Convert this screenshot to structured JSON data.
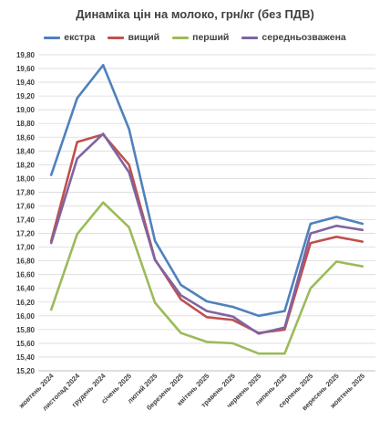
{
  "chart_data": {
    "type": "line",
    "title": "Динаміка цін на молоко, грн/кг (без ПДВ)",
    "xlabel": "",
    "ylabel": "",
    "ylim": [
      15.2,
      19.8
    ],
    "y_ticks": [
      "15,20",
      "15,40",
      "15,60",
      "15,80",
      "16,00",
      "16,20",
      "16,40",
      "16,60",
      "16,80",
      "17,00",
      "17,20",
      "17,40",
      "17,60",
      "17,80",
      "18,00",
      "18,20",
      "18,40",
      "18,60",
      "18,80",
      "19,00",
      "19,20",
      "19,40",
      "19,60",
      "19,80"
    ],
    "grid": true,
    "legend_position": "top",
    "categories": [
      "жовтень 2024",
      "листопад 2024",
      "грудень 2024",
      "січень 2025",
      "лютий 2025",
      "березень 2025",
      "квітень 2025",
      "травень 2025",
      "червень 2025",
      "липень 2025",
      "серпень 2025",
      "вересень 2025",
      "жовтень 2025"
    ],
    "series": [
      {
        "name": "екстра",
        "color": "#4f81bd",
        "values": [
          18.05,
          19.17,
          19.65,
          18.72,
          17.09,
          16.45,
          16.21,
          16.13,
          16.0,
          16.07,
          17.34,
          17.44,
          17.34
        ]
      },
      {
        "name": "вищий",
        "color": "#c0504d",
        "values": [
          17.09,
          18.53,
          18.64,
          18.2,
          16.82,
          16.24,
          15.98,
          15.94,
          15.75,
          15.8,
          17.06,
          17.15,
          17.08
        ]
      },
      {
        "name": "перший",
        "color": "#9bbb59",
        "values": [
          16.09,
          17.19,
          17.65,
          17.29,
          16.19,
          15.75,
          15.62,
          15.6,
          15.45,
          15.45,
          16.4,
          16.79,
          16.72
        ]
      },
      {
        "name": "середньозважена",
        "color": "#8064a2",
        "values": [
          17.06,
          18.29,
          18.65,
          18.09,
          16.81,
          16.3,
          16.07,
          15.99,
          15.74,
          15.83,
          17.2,
          17.31,
          17.25
        ]
      }
    ]
  }
}
